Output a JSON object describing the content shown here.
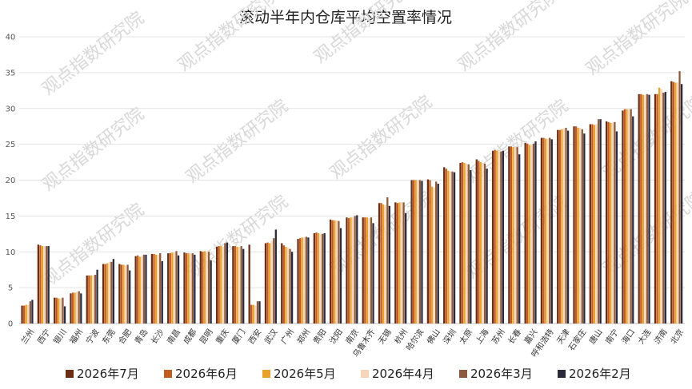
{
  "chart_data": {
    "type": "bar",
    "title": "滚动半年内仓库平均空置率情况",
    "ylim": [
      0,
      40
    ],
    "yticks": [
      0,
      5,
      10,
      15,
      20,
      25,
      30,
      35,
      40
    ],
    "grid": true,
    "legend_position": "bottom",
    "watermark": "观点指数研究院",
    "categories": [
      "兰州",
      "西宁",
      "银川",
      "福州",
      "宁波",
      "东莞",
      "合肥",
      "青岛",
      "长沙",
      "南昌",
      "成都",
      "昆明",
      "重庆",
      "厦门",
      "西安",
      "武汉",
      "广州",
      "郑州",
      "贵阳",
      "沈阳",
      "南京",
      "乌鲁木齐",
      "无锡",
      "杭州",
      "哈尔滨",
      "佛山",
      "深圳",
      "太原",
      "上海",
      "苏州",
      "长春",
      "嘉兴",
      "呼和浩特",
      "天津",
      "石家庄",
      "唐山",
      "南宁",
      "海口",
      "大连",
      "济南",
      "北京"
    ],
    "series": [
      {
        "name": "2026年7月",
        "color": "#6b2e14",
        "values": [
          2.5,
          11.0,
          3.6,
          4.2,
          6.7,
          8.3,
          8.3,
          9.4,
          9.7,
          9.8,
          9.9,
          10.1,
          10.7,
          10.8,
          11.0,
          11.2,
          11.2,
          11.8,
          12.6,
          14.5,
          14.8,
          14.8,
          16.8,
          16.9,
          20.0,
          20.1,
          21.8,
          22.4,
          22.9,
          24.1,
          24.7,
          25.2,
          25.9,
          27.0,
          27.5,
          27.8,
          28.2,
          29.7,
          32.0,
          32.0,
          33.8
        ]
      },
      {
        "name": "2026年6月",
        "color": "#c55a1e",
        "values": [
          2.5,
          10.9,
          3.6,
          4.3,
          6.7,
          8.3,
          8.2,
          9.5,
          9.7,
          9.8,
          9.8,
          10.0,
          10.8,
          10.8,
          2.6,
          11.3,
          10.9,
          11.9,
          12.7,
          14.4,
          14.7,
          14.8,
          16.8,
          16.8,
          20.0,
          20.0,
          21.6,
          22.5,
          22.7,
          24.2,
          24.7,
          25.1,
          25.9,
          27.0,
          27.5,
          27.8,
          28.1,
          29.9,
          32.0,
          32.0,
          33.7
        ]
      },
      {
        "name": "2026年5月",
        "color": "#e8a22b",
        "values": [
          2.6,
          10.8,
          3.5,
          4.3,
          6.7,
          8.4,
          8.2,
          9.3,
          9.6,
          9.9,
          9.8,
          10.1,
          10.8,
          10.7,
          2.6,
          11.2,
          10.7,
          12.0,
          12.6,
          14.4,
          14.8,
          14.8,
          16.6,
          16.9,
          20.0,
          19.1,
          21.3,
          22.4,
          22.5,
          24.1,
          24.6,
          24.9,
          25.8,
          27.1,
          27.3,
          27.7,
          28.0,
          29.9,
          31.9,
          32.9,
          33.6
        ]
      },
      {
        "name": "2026年4月",
        "color": "#f6d6b8",
        "values": [
          2.6,
          10.8,
          3.5,
          4.4,
          6.7,
          8.6,
          8.1,
          9.4,
          9.6,
          9.9,
          9.8,
          10.0,
          10.7,
          10.7,
          2.5,
          11.5,
          10.6,
          12.0,
          12.5,
          14.4,
          14.8,
          14.7,
          16.5,
          16.9,
          20.0,
          19.0,
          21.2,
          22.3,
          22.4,
          24.2,
          24.6,
          24.9,
          25.8,
          27.2,
          27.3,
          27.8,
          28.0,
          29.9,
          31.9,
          32.7,
          33.6
        ]
      },
      {
        "name": "2026年3月",
        "color": "#8c5a3c",
        "values": [
          3.1,
          10.8,
          3.6,
          4.5,
          6.8,
          8.6,
          8.2,
          9.6,
          9.8,
          10.1,
          9.8,
          10.0,
          11.2,
          10.8,
          3.1,
          11.9,
          10.4,
          12.1,
          12.5,
          14.3,
          15.0,
          14.8,
          17.6,
          16.9,
          20.0,
          19.8,
          21.2,
          22.2,
          22.3,
          24.0,
          24.6,
          25.1,
          25.9,
          27.3,
          27.1,
          28.5,
          28.1,
          29.9,
          32.0,
          32.2,
          35.2
        ]
      },
      {
        "name": "2026年2月",
        "color": "#2a2a3c",
        "values": [
          3.3,
          10.8,
          2.4,
          4.2,
          7.5,
          9.0,
          7.4,
          9.6,
          8.7,
          9.5,
          9.6,
          8.8,
          11.3,
          10.4,
          3.1,
          13.1,
          10.0,
          12.0,
          12.6,
          13.3,
          15.1,
          14.0,
          16.4,
          15.4,
          19.9,
          19.5,
          21.1,
          21.4,
          21.6,
          24.1,
          23.6,
          25.4,
          25.7,
          26.9,
          26.5,
          28.5,
          26.8,
          28.9,
          31.9,
          32.3,
          33.4
        ]
      }
    ]
  }
}
